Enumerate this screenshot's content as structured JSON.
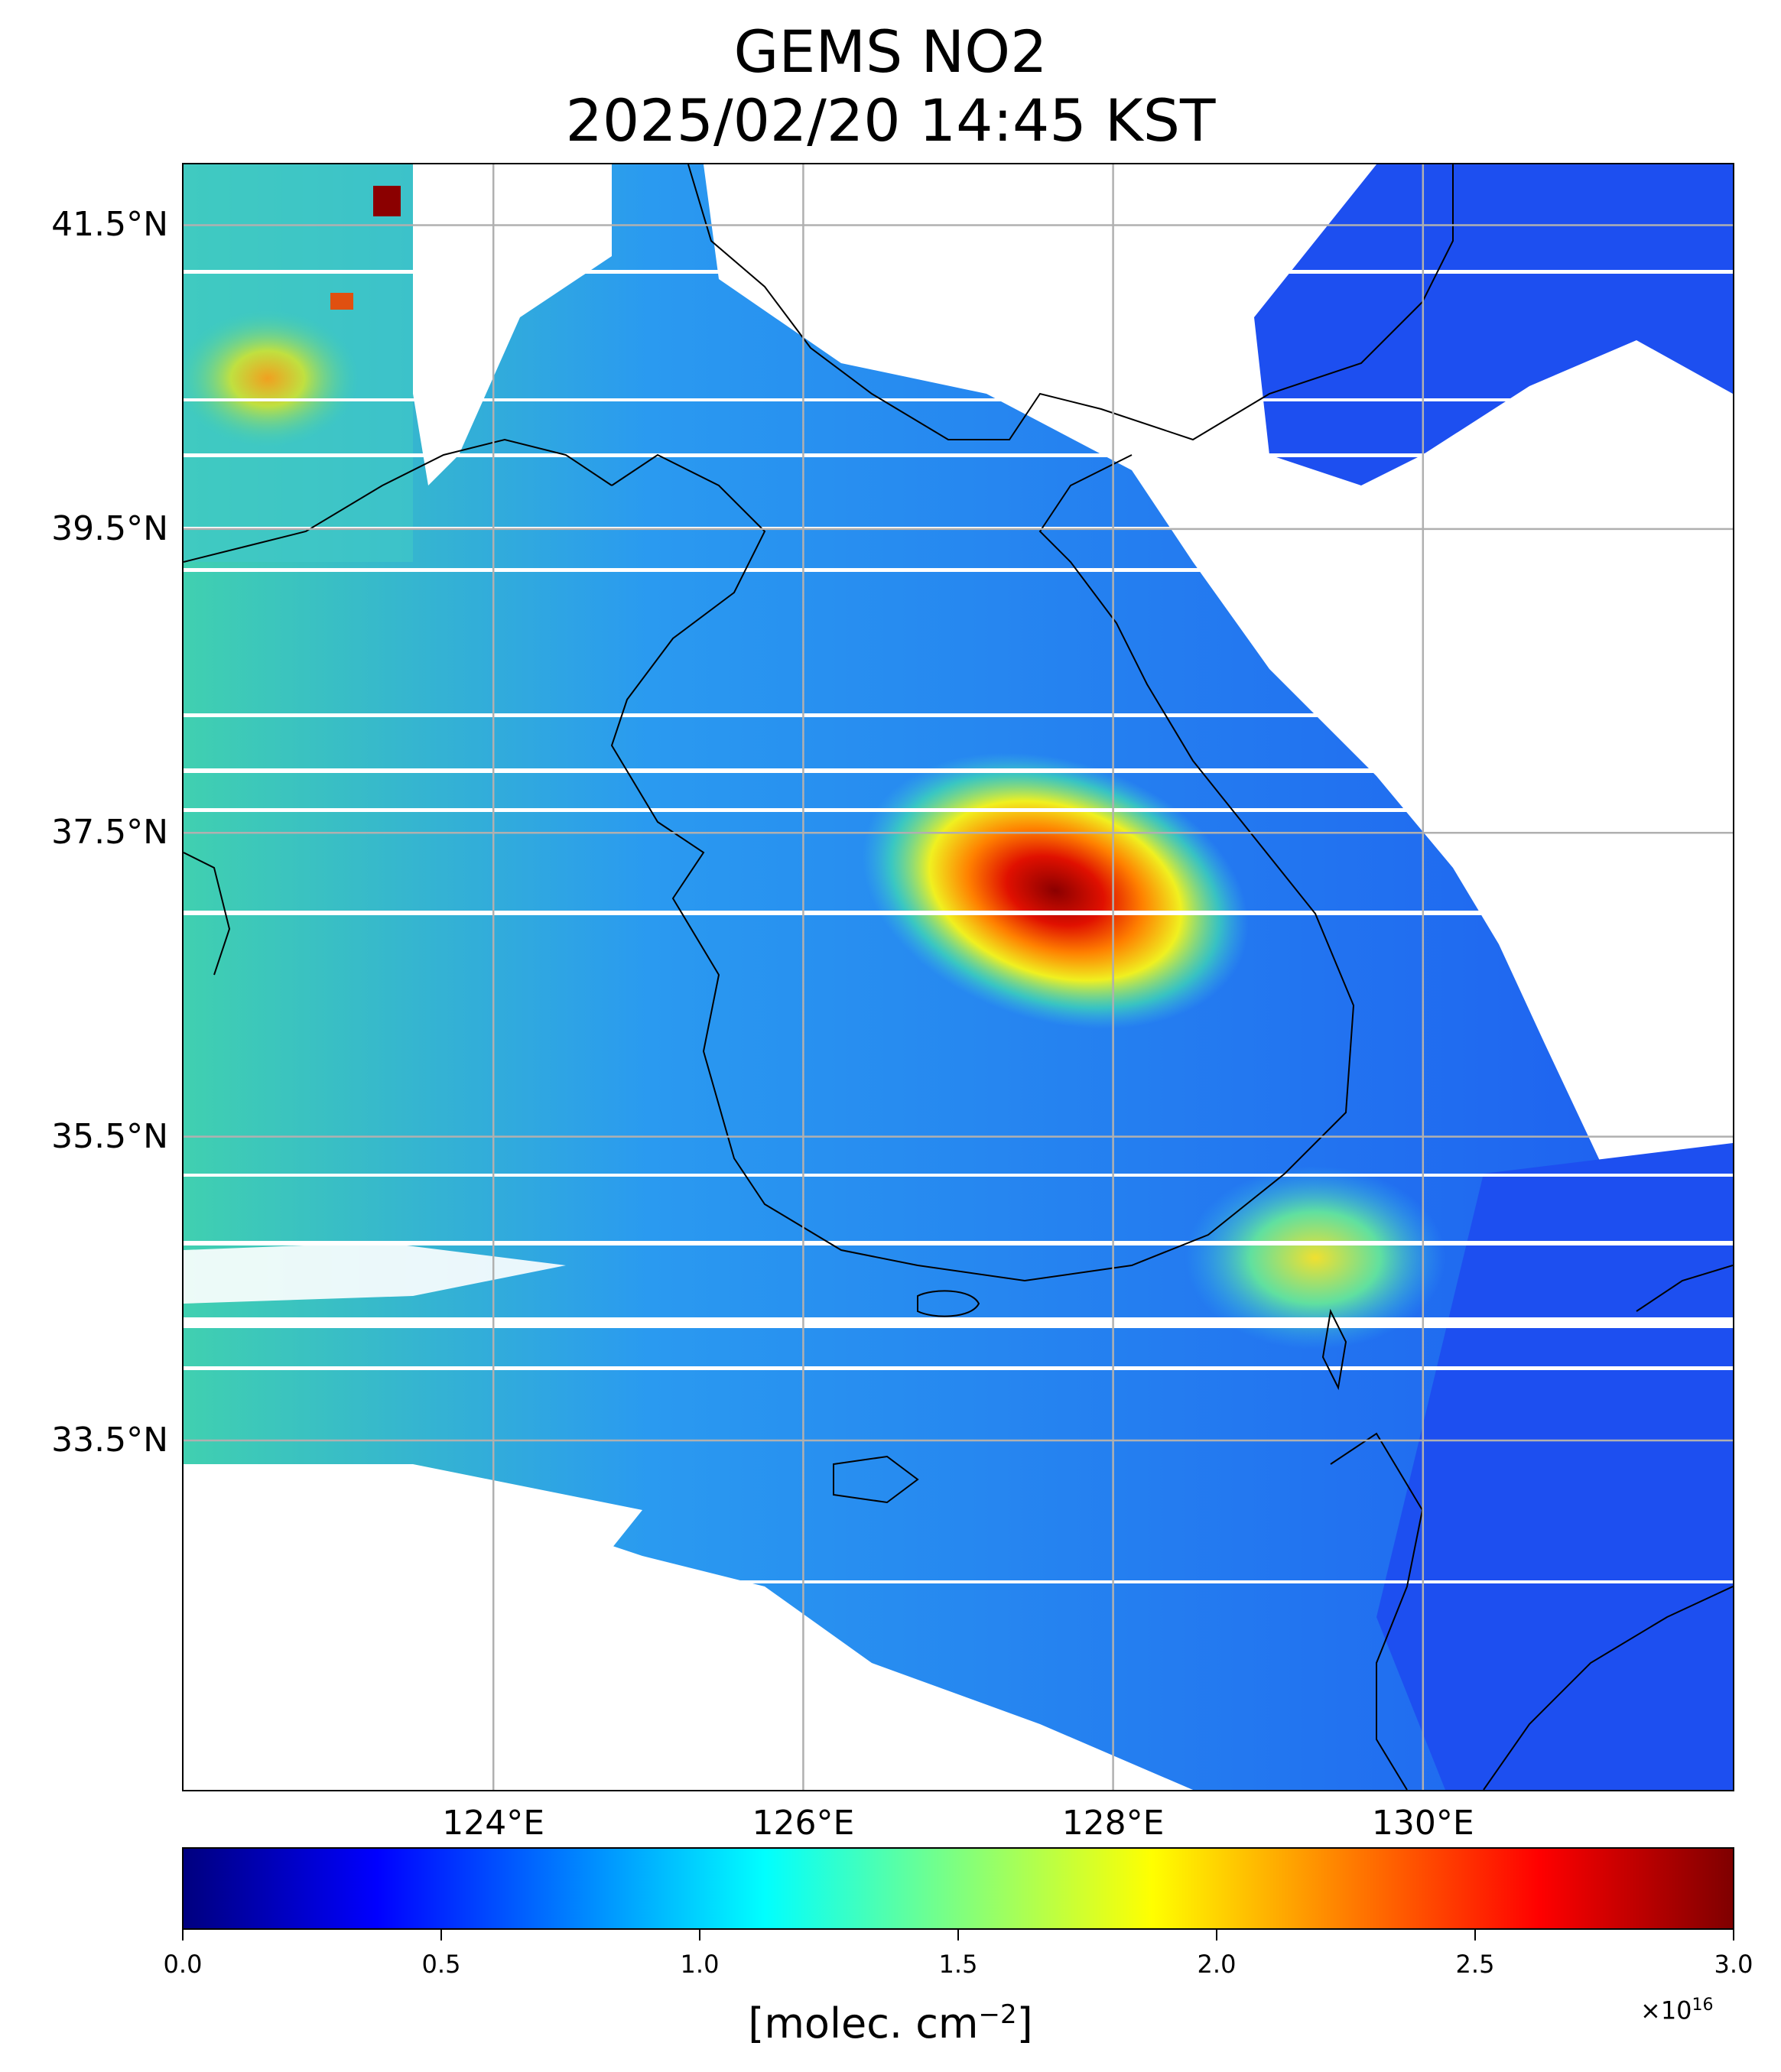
{
  "title": {
    "line1": "GEMS NO2",
    "line2": "2025/02/20 14:45 KST"
  },
  "map": {
    "lon_range": [
      122,
      132
    ],
    "lat_range": [
      31.2,
      41.9
    ],
    "lat_gridlines": [
      33.5,
      35.5,
      37.5,
      39.5,
      41.5
    ],
    "lon_gridlines": [
      124,
      126,
      128,
      130
    ],
    "lat_labels": [
      "33.5°N",
      "35.5°N",
      "37.5°N",
      "39.5°N",
      "41.5°N"
    ],
    "lon_labels": [
      "124°E",
      "126°E",
      "128°E",
      "130°E"
    ],
    "grid": true,
    "hotspot_lon": 127.7,
    "hotspot_lat": 37.2,
    "colormap": "jet"
  },
  "colorbar": {
    "min": 0.0,
    "max": 3.0,
    "ticks": [
      "0.0",
      "0.5",
      "1.0",
      "1.5",
      "2.0",
      "2.5",
      "3.0"
    ],
    "label_main": "[molec. cm",
    "label_exp": "−2",
    "label_end": "]",
    "multiplier_base": "×10",
    "multiplier_exp": "16"
  }
}
